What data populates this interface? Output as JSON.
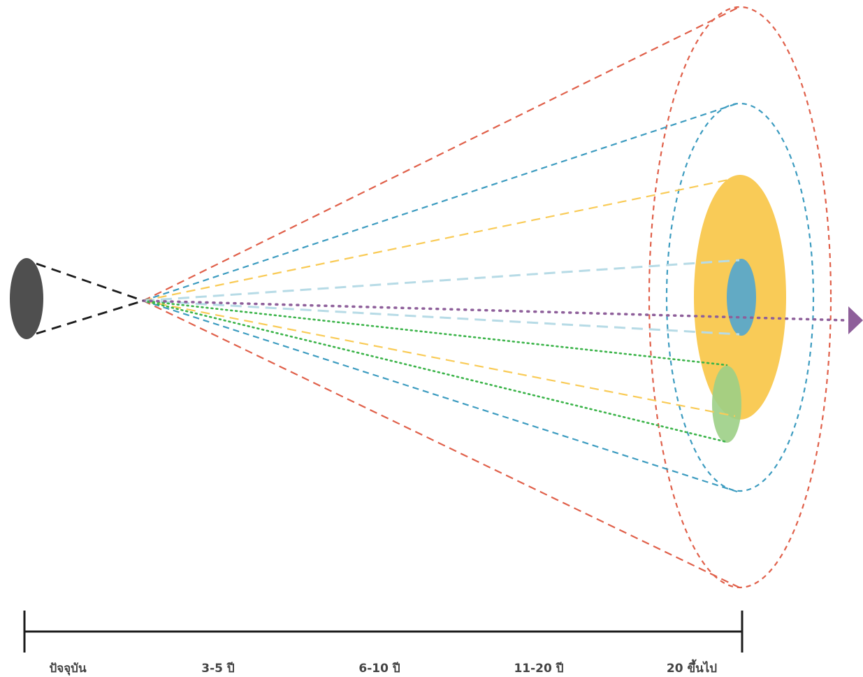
{
  "colors": {
    "red": "#e0604a",
    "blue": "#3d9cc0",
    "yellow": "#f9cb57",
    "light_blue": "#b7dbe6",
    "teal": "#62aac4",
    "green": "#3cb44a",
    "light_green": "#9ccf86",
    "purple": "#8e5f9a",
    "dark_gray": "#4f4f4f",
    "black": "#1c1c1c"
  },
  "timeline": {
    "labels": [
      "ปัจจุบัน",
      "3-5 ปี",
      "6-10 ปี",
      "11-20 ปี",
      "20 ขึ้นไป"
    ]
  }
}
